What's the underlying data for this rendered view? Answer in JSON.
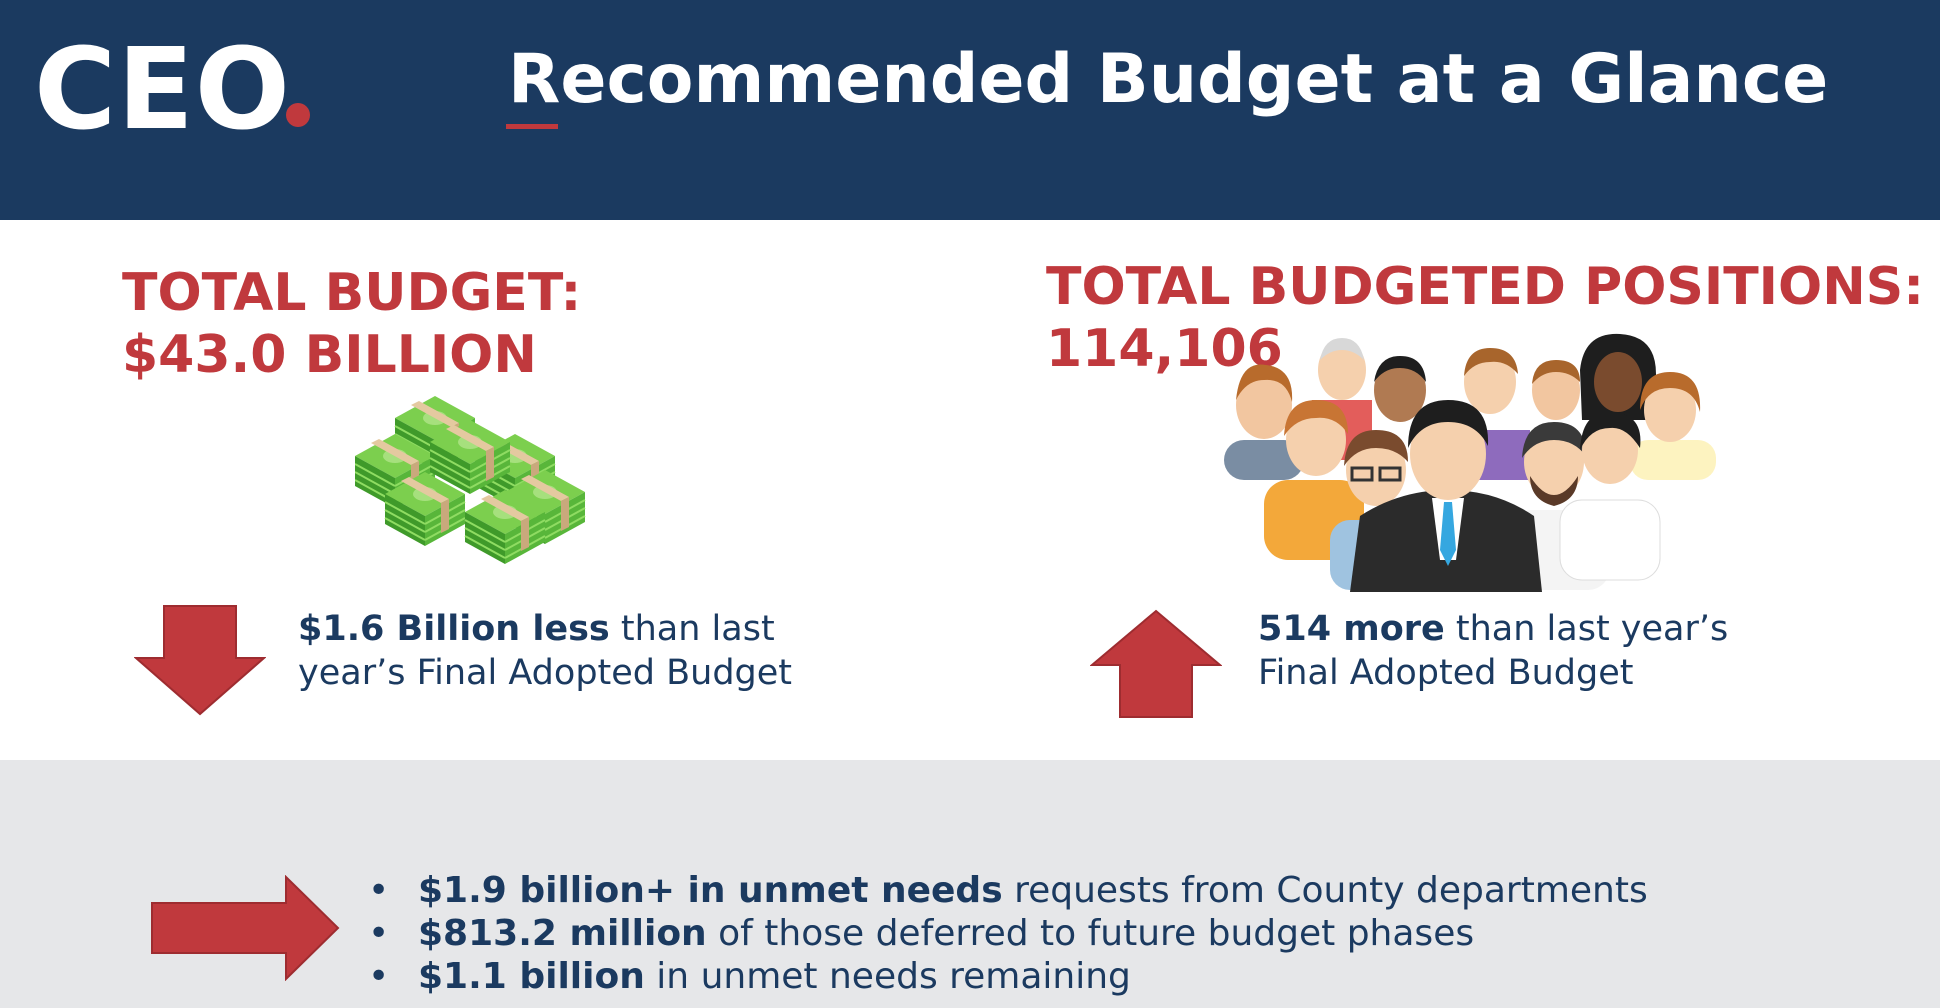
{
  "header": {
    "logo": "CEO",
    "title": "Recommended Budget at a Glance"
  },
  "budget": {
    "title_line1": "TOTAL BUDGET:",
    "title_line2": "$43.0 BILLION",
    "change_bold": "$1.6 Billion less",
    "change_rest_line1": " than last",
    "change_line2": "year’s Final Adopted Budget",
    "arrow_icon": "arrow-down-icon",
    "image_icon": "money-stacks-icon"
  },
  "positions": {
    "title_line1": "TOTAL BUDGETED POSITIONS:",
    "title_line2": "114,106",
    "change_bold": "514 more",
    "change_rest_line1": " than last year’s",
    "change_line2": "Final Adopted Budget",
    "arrow_icon": "arrow-up-icon",
    "image_icon": "people-group-icon"
  },
  "unmet_needs": {
    "arrow_icon": "arrow-right-icon",
    "bullet": "•",
    "items": [
      {
        "bold": "$1.9 billion+ in unmet needs",
        "rest": " requests from County departments"
      },
      {
        "bold": "$813.2 million",
        "rest": " of those deferred to future budget phases"
      },
      {
        "bold": "$1.1 billion",
        "rest": " in unmet needs remaining"
      }
    ]
  },
  "colors": {
    "navy": "#1b3a60",
    "red": "#c0393d",
    "grey_band": "#e6e7e9",
    "money_green": "#6cc04a"
  }
}
